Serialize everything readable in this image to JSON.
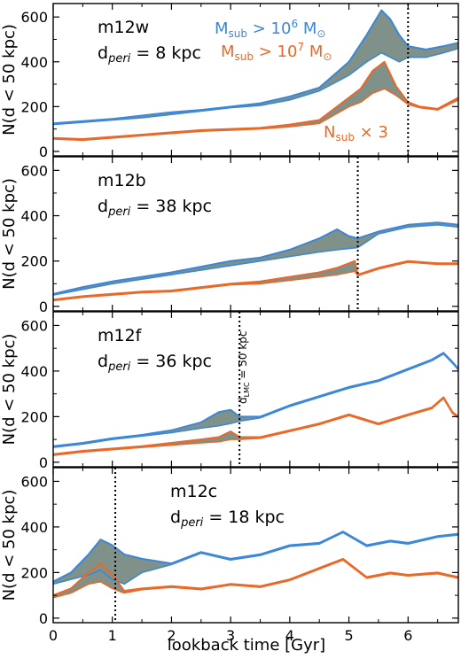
{
  "colors": {
    "blue": "#3d87d6",
    "orange": "#e8692a",
    "fill": "#7f9188",
    "marker": "#000000"
  },
  "figure": {
    "xlabel": "lookback time [Gyr]",
    "ylabel": "N(d < 50 kpc)"
  },
  "legend": {
    "blue_label": "M",
    "blue_sub": "sub",
    "blue_cond": " > 10",
    "blue_exp": "6",
    "blue_unit": " M",
    "blue_sym": "⊙",
    "orange_label": "M",
    "orange_sub": "sub",
    "orange_cond": " > 10",
    "orange_exp": "7",
    "orange_unit": " M",
    "orange_sym": "⊙",
    "note_label": "N",
    "note_sub": "sub",
    "note_times": " × 3"
  },
  "annotation": {
    "text": "d",
    "sub": "LMC",
    "rest": " = 50 kpc"
  },
  "chart_data": [
    {
      "type": "line",
      "panel": "m12w",
      "title": "m12w",
      "peri_prefix": "d",
      "peri_sub": "peri",
      "peri_rest": " = 8 kpc",
      "xlim": [
        0,
        6.85
      ],
      "ylim": [
        -20,
        660
      ],
      "xticks": [
        0,
        1,
        2,
        3,
        4,
        5,
        6
      ],
      "yticks": [
        0,
        200,
        400,
        600
      ],
      "marker_x": 6.0,
      "series": [
        {
          "name": "Msub > 10^6 Msun",
          "x": [
            0,
            0.5,
            1,
            1.5,
            2,
            2.5,
            3,
            3.5,
            4,
            4.5,
            5,
            5.3,
            5.55,
            5.7,
            5.85,
            6.0,
            6.3,
            6.6,
            6.85
          ],
          "y": [
            125,
            135,
            145,
            160,
            175,
            185,
            200,
            215,
            245,
            285,
            400,
            520,
            630,
            590,
            520,
            470,
            455,
            470,
            485
          ]
        },
        {
          "name": "Msub > 10^6 Msun (lower)",
          "x": [
            0,
            0.5,
            1,
            1.5,
            2,
            2.5,
            3,
            3.5,
            4,
            4.5,
            5,
            5.3,
            5.55,
            5.7,
            5.85,
            6.0,
            6.3,
            6.6,
            6.85
          ],
          "y": [
            120,
            130,
            140,
            150,
            165,
            180,
            195,
            205,
            230,
            270,
            340,
            400,
            440,
            420,
            400,
            420,
            420,
            440,
            460
          ]
        },
        {
          "name": "Nsub x 3 (Msub > 10^7 Msun)",
          "x": [
            0,
            0.5,
            1,
            1.5,
            2,
            2.5,
            3,
            3.5,
            4,
            4.5,
            5,
            5.2,
            5.4,
            5.6,
            5.8,
            6.0,
            6.2,
            6.5,
            6.85
          ],
          "y": [
            60,
            55,
            65,
            75,
            85,
            95,
            100,
            105,
            120,
            140,
            240,
            280,
            360,
            400,
            290,
            220,
            200,
            190,
            240
          ]
        },
        {
          "name": "Nsub x 3 (lower)",
          "x": [
            0,
            0.5,
            1,
            1.5,
            2,
            2.5,
            3,
            3.5,
            4,
            4.5,
            5,
            5.2,
            5.4,
            5.6,
            5.8,
            6.0,
            6.2,
            6.5,
            6.85
          ],
          "y": [
            55,
            50,
            60,
            70,
            80,
            90,
            95,
            100,
            110,
            125,
            200,
            220,
            260,
            280,
            250,
            210,
            195,
            185,
            230
          ]
        }
      ]
    },
    {
      "type": "line",
      "panel": "m12b",
      "title": "m12b",
      "peri_prefix": "d",
      "peri_sub": "peri",
      "peri_rest": " = 38 kpc",
      "xlim": [
        0,
        6.85
      ],
      "ylim": [
        -20,
        660
      ],
      "xticks": [
        0,
        1,
        2,
        3,
        4,
        5,
        6
      ],
      "yticks": [
        0,
        200,
        400,
        600
      ],
      "marker_x": 5.15,
      "series": [
        {
          "name": "Msub > 10^6 Msun",
          "x": [
            0,
            0.5,
            1,
            1.5,
            2,
            2.5,
            3,
            3.5,
            4,
            4.5,
            4.8,
            5.0,
            5.15,
            5.5,
            6.0,
            6.5,
            6.85
          ],
          "y": [
            55,
            85,
            110,
            130,
            150,
            175,
            200,
            215,
            250,
            300,
            340,
            310,
            300,
            330,
            360,
            370,
            360
          ]
        },
        {
          "name": "Msub > 10^6 Msun (lower)",
          "x": [
            0,
            0.5,
            1,
            1.5,
            2,
            2.5,
            3,
            3.5,
            4,
            4.5,
            4.8,
            5.0,
            5.15,
            5.5,
            6.0,
            6.5,
            6.85
          ],
          "y": [
            50,
            75,
            100,
            120,
            140,
            160,
            180,
            200,
            220,
            240,
            250,
            255,
            260,
            320,
            350,
            360,
            350
          ]
        },
        {
          "name": "Nsub x 3 (Msub > 10^7 Msun)",
          "x": [
            0,
            0.5,
            1,
            1.5,
            2,
            2.5,
            3,
            3.5,
            4,
            4.5,
            4.8,
            5.0,
            5.1,
            5.15,
            5.5,
            6.0,
            6.5,
            6.85
          ],
          "y": [
            30,
            45,
            55,
            65,
            70,
            85,
            100,
            110,
            130,
            150,
            170,
            190,
            200,
            140,
            170,
            200,
            190,
            190
          ]
        },
        {
          "name": "Nsub x 3 (lower)",
          "x": [
            0,
            0.5,
            1,
            1.5,
            2,
            2.5,
            3,
            3.5,
            4,
            4.5,
            4.8,
            5.0,
            5.1,
            5.15,
            5.5,
            6.0,
            6.5,
            6.85
          ],
          "y": [
            25,
            40,
            50,
            60,
            65,
            80,
            95,
            100,
            115,
            130,
            140,
            150,
            155,
            135,
            165,
            195,
            185,
            185
          ]
        }
      ]
    },
    {
      "type": "line",
      "panel": "m12f",
      "title": "m12f",
      "peri_prefix": "d",
      "peri_sub": "peri",
      "peri_rest": " = 36 kpc",
      "xlim": [
        0,
        6.85
      ],
      "ylim": [
        -20,
        660
      ],
      "xticks": [
        0,
        1,
        2,
        3,
        4,
        5,
        6
      ],
      "yticks": [
        0,
        200,
        400,
        600
      ],
      "marker_x": 3.15,
      "series": [
        {
          "name": "Msub > 10^6 Msun",
          "x": [
            0,
            0.5,
            1,
            1.5,
            2,
            2.5,
            2.8,
            3.0,
            3.15,
            3.5,
            4.0,
            4.5,
            5.0,
            5.5,
            6.0,
            6.4,
            6.6,
            6.75,
            6.85
          ],
          "y": [
            70,
            85,
            105,
            120,
            140,
            175,
            220,
            230,
            200,
            200,
            250,
            290,
            330,
            360,
            410,
            450,
            480,
            440,
            410
          ]
        },
        {
          "name": "Msub > 10^6 Msun (lower)",
          "x": [
            0,
            0.5,
            1,
            1.5,
            2,
            2.5,
            2.8,
            3.0,
            3.15,
            3.5,
            4.0,
            4.5,
            5.0,
            5.5,
            6.0,
            6.4,
            6.6,
            6.75,
            6.85
          ],
          "y": [
            65,
            80,
            100,
            115,
            130,
            150,
            160,
            170,
            180,
            195,
            245,
            285,
            325,
            355,
            405,
            445,
            475,
            435,
            405
          ]
        },
        {
          "name": "Nsub x 3 (Msub > 10^7 Msun)",
          "x": [
            0,
            0.5,
            1,
            1.5,
            2,
            2.5,
            2.8,
            3.0,
            3.15,
            3.5,
            4.0,
            4.5,
            5.0,
            5.5,
            6.0,
            6.4,
            6.6,
            6.75,
            6.85
          ],
          "y": [
            35,
            50,
            60,
            70,
            85,
            100,
            110,
            135,
            110,
            110,
            140,
            170,
            210,
            170,
            210,
            240,
            285,
            220,
            200
          ]
        },
        {
          "name": "Nsub x 3 (lower)",
          "x": [
            0,
            0.5,
            1,
            1.5,
            2,
            2.5,
            2.8,
            3.0,
            3.15,
            3.5,
            4.0,
            4.5,
            5.0,
            5.5,
            6.0,
            6.4,
            6.6,
            6.75,
            6.85
          ],
          "y": [
            30,
            45,
            55,
            65,
            75,
            85,
            90,
            100,
            100,
            105,
            135,
            165,
            205,
            165,
            205,
            235,
            280,
            215,
            195
          ]
        }
      ]
    },
    {
      "type": "line",
      "panel": "m12c",
      "title": "m12c",
      "peri_prefix": "d",
      "peri_sub": "peri",
      "peri_rest": " = 18 kpc",
      "xlim": [
        0,
        6.85
      ],
      "ylim": [
        -20,
        660
      ],
      "xticks": [
        0,
        1,
        2,
        3,
        4,
        5,
        6
      ],
      "yticks": [
        0,
        200,
        400,
        600
      ],
      "marker_x": 1.05,
      "series": [
        {
          "name": "Msub > 10^6 Msun",
          "x": [
            0,
            0.3,
            0.6,
            0.8,
            1.0,
            1.2,
            1.5,
            2.0,
            2.5,
            3.0,
            3.5,
            4.0,
            4.5,
            4.9,
            5.3,
            5.7,
            6.0,
            6.5,
            6.85
          ],
          "y": [
            160,
            200,
            280,
            345,
            320,
            280,
            260,
            240,
            290,
            260,
            280,
            320,
            330,
            380,
            320,
            340,
            330,
            360,
            370
          ]
        },
        {
          "name": "Msub > 10^6 Msun (lower)",
          "x": [
            0,
            0.3,
            0.6,
            0.8,
            1.0,
            1.2,
            1.5,
            2.0,
            2.5,
            3.0,
            3.5,
            4.0,
            4.5,
            4.9,
            5.3,
            5.7,
            6.0,
            6.5,
            6.85
          ],
          "y": [
            150,
            170,
            190,
            210,
            170,
            150,
            200,
            235,
            285,
            255,
            275,
            315,
            325,
            375,
            315,
            335,
            325,
            355,
            365
          ]
        },
        {
          "name": "Nsub x 3 (Msub > 10^7 Msun)",
          "x": [
            0,
            0.3,
            0.6,
            0.8,
            1.0,
            1.2,
            1.5,
            2.0,
            2.5,
            3.0,
            3.5,
            4.0,
            4.5,
            4.9,
            5.3,
            5.7,
            6.0,
            6.5,
            6.85
          ],
          "y": [
            100,
            130,
            200,
            240,
            190,
            120,
            130,
            140,
            130,
            150,
            140,
            170,
            220,
            260,
            180,
            200,
            190,
            200,
            180
          ]
        },
        {
          "name": "Nsub x 3 (lower)",
          "x": [
            0,
            0.3,
            0.6,
            0.8,
            1.0,
            1.2,
            1.5,
            2.0,
            2.5,
            3.0,
            3.5,
            4.0,
            4.5,
            4.9,
            5.3,
            5.7,
            6.0,
            6.5,
            6.85
          ],
          "y": [
            90,
            110,
            150,
            160,
            130,
            110,
            125,
            135,
            125,
            145,
            135,
            165,
            215,
            255,
            175,
            195,
            185,
            195,
            175
          ]
        }
      ]
    }
  ]
}
